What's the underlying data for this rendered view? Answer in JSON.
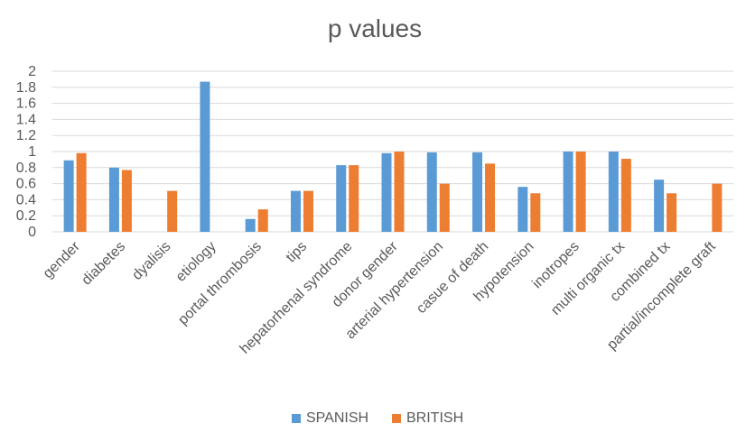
{
  "chart_data": {
    "type": "bar",
    "title": "p values",
    "xlabel": "",
    "ylabel": "",
    "ylim": [
      0,
      2
    ],
    "yticks": [
      "0",
      "0.2",
      "0.4",
      "0.6",
      "0.8",
      "1",
      "1.2",
      "1.4",
      "1.6",
      "1.8",
      "2"
    ],
    "grid": true,
    "legend_position": "bottom",
    "categories": [
      "gender",
      "diabetes",
      "dyalisis",
      "etiology",
      "portal thrombosis",
      "tips",
      "hepatorhenal syndrome",
      "donor gender",
      "arterial hypertension",
      "casue of death",
      "hypotension",
      "inotropes",
      "multi organic tx",
      "combined tx",
      "partial/incomplete graft"
    ],
    "series": [
      {
        "name": "SPANISH",
        "color": "#5b9bd5",
        "values": [
          0.89,
          0.8,
          null,
          1.87,
          0.16,
          0.51,
          0.83,
          0.98,
          0.99,
          0.99,
          0.56,
          1.0,
          1.0,
          0.65,
          null
        ]
      },
      {
        "name": "BRITISH",
        "color": "#ed7d31",
        "values": [
          0.98,
          0.77,
          0.51,
          null,
          0.28,
          0.51,
          0.83,
          1.0,
          0.6,
          0.85,
          0.48,
          1.0,
          0.91,
          0.48,
          0.6
        ]
      }
    ]
  }
}
